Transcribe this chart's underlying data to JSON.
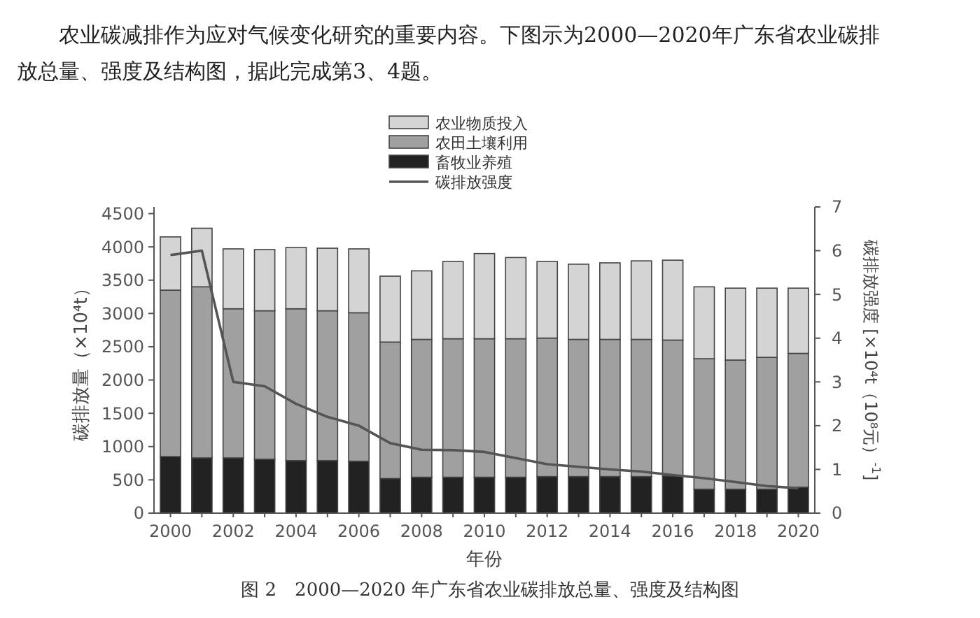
{
  "chart_data": {
    "type": "bar",
    "stacked": true,
    "ylabel": "碳排放量（×10⁴t）",
    "y2label": "碳排放强度 [×10⁴t（10⁸元）$^{-1}$]",
    "xlabel": "年份",
    "annotations": [
      "农业碳减排作为应对气候变化研究的重要内容。下图示为2000—2020年广东省农业碳排放总量、强度及结构图，据此完成第3、4题。",
      "图 2　2000—2020 年广东省农业碳排放总量、强度及结构图"
    ],
    "categories": [
      "2000",
      null,
      "2002",
      null,
      "2004",
      null,
      "2006",
      null,
      "2008",
      null,
      "2010",
      null,
      "2012",
      null,
      "2014",
      null,
      "2016",
      null,
      "2018",
      null,
      "2020"
    ],
    "series": [
      {
        "name": "畜牧业养殖",
        "color": "#222222",
        "values": [
          850,
          830,
          830,
          810,
          790,
          790,
          780,
          520,
          540,
          540,
          540,
          540,
          550,
          550,
          550,
          550,
          560,
          360,
          360,
          360,
          390
        ]
      },
      {
        "name": "农田土壤利用",
        "color": "#a0a0a0",
        "values": [
          2500,
          2570,
          2240,
          2230,
          2280,
          2250,
          2230,
          2050,
          2070,
          2080,
          2080,
          2080,
          2080,
          2060,
          2060,
          2060,
          2040,
          1960,
          1940,
          1980,
          2010
        ]
      },
      {
        "name": "农业物质投入",
        "color": "#d4d4d4",
        "values": [
          800,
          880,
          900,
          920,
          920,
          940,
          960,
          990,
          1030,
          1160,
          1280,
          1220,
          1150,
          1130,
          1150,
          1180,
          1200,
          1080,
          1080,
          1040,
          980
        ]
      },
      {
        "name": "碳排放强度",
        "type": "line",
        "axis": "y2",
        "color": "#555555",
        "values": [
          5.9,
          6.0,
          3.0,
          2.9,
          2.5,
          2.2,
          2.0,
          1.6,
          1.45,
          1.44,
          1.4,
          1.26,
          1.12,
          1.06,
          1.0,
          0.95,
          0.87,
          0.8,
          0.71,
          0.62,
          0.57
        ]
      }
    ],
    "ylim": [
      0,
      4600
    ],
    "yticks": [
      0,
      500,
      1000,
      1500,
      2000,
      2500,
      3000,
      3500,
      4000,
      4500
    ],
    "y2lim": [
      0,
      7
    ],
    "y2ticks": [
      0,
      1,
      2,
      3,
      4,
      5,
      6,
      7
    ],
    "legend": "top",
    "grid": false,
    "marker": "none",
    "line_style": "solid"
  }
}
